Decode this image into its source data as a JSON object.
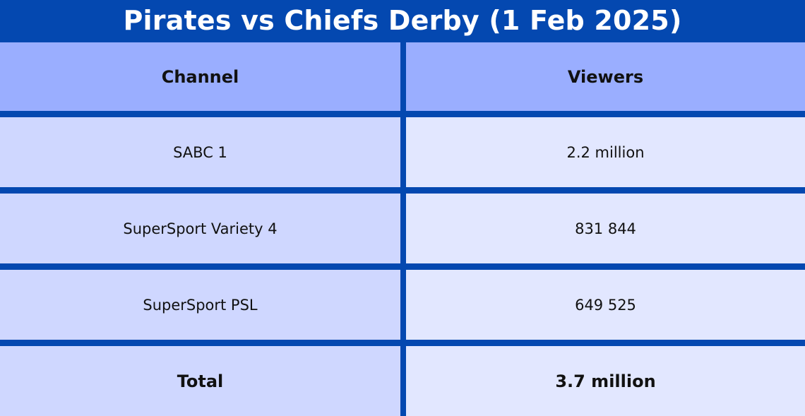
{
  "title": "Pirates vs Chiefs Derby (1 Feb 2025)",
  "table": {
    "headers": [
      "Channel",
      "Viewers"
    ],
    "rows": [
      {
        "channel": "SABC 1",
        "viewers": "2.2 million"
      },
      {
        "channel": "SuperSport Variety 4",
        "viewers": "831 844"
      },
      {
        "channel": "SuperSport PSL",
        "viewers": "649 525"
      }
    ],
    "total": {
      "label": "Total",
      "value": "3.7 million"
    }
  },
  "colors": {
    "border": "#0448b0",
    "header_bg": "#9aaeff",
    "left_bg": "#cfd7ff",
    "right_bg": "#e2e7ff",
    "title_text": "#ffffff"
  }
}
